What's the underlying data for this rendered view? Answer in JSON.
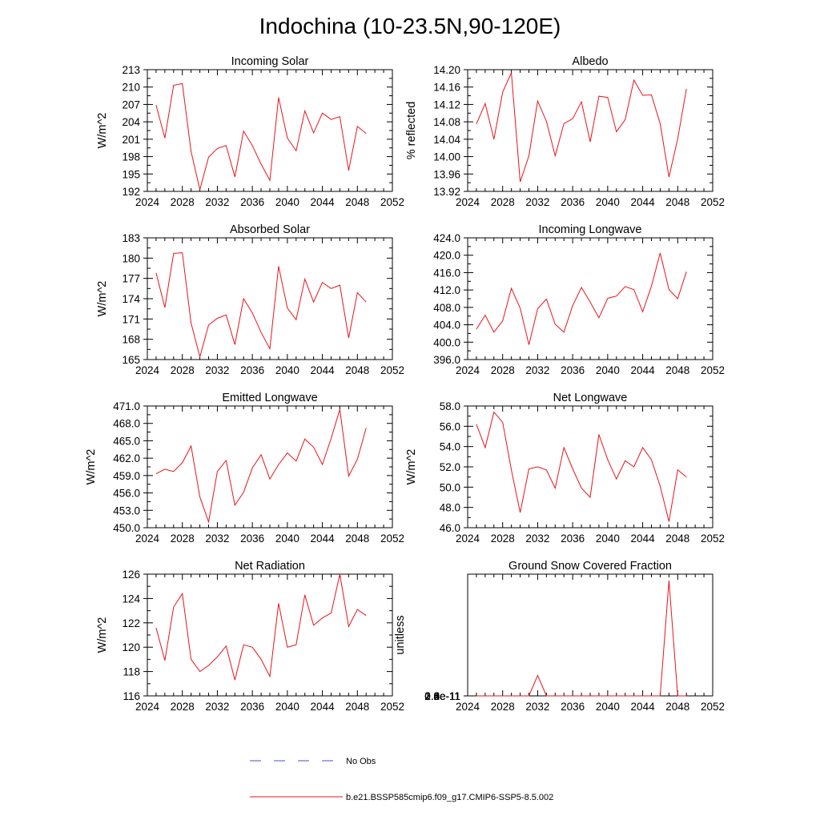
{
  "title": "Indochina (10-23.5N,90-120E)",
  "legend": [
    {
      "label": "No Obs",
      "color": "#4a4ad8",
      "dash": true
    },
    {
      "label": "b.e21.BSSP585cmip6.f09_g17.CMIP6-SSP5-8.5.002",
      "color": "#e8141b",
      "dash": false
    }
  ],
  "chart_data": [
    {
      "type": "line",
      "title": "Incoming Solar",
      "ylabel": "W/m^2",
      "xlim": [
        2024,
        2052
      ],
      "xticks": [
        "2024",
        "2028",
        "2032",
        "2036",
        "2040",
        "2044",
        "2048",
        "2052"
      ],
      "ylim": [
        192,
        213
      ],
      "yticks": [
        "192",
        "195",
        "198",
        "201",
        "204",
        "207",
        "210",
        "213"
      ],
      "x": [
        2025,
        2026,
        2027,
        2028,
        2029,
        2030,
        2031,
        2032,
        2033,
        2034,
        2035,
        2036,
        2037,
        2038,
        2039,
        2040,
        2041,
        2042,
        2043,
        2044,
        2045,
        2046,
        2047,
        2048,
        2049
      ],
      "values": [
        206.9,
        201.2,
        210.3,
        210.6,
        198.9,
        192.3,
        197.9,
        199.4,
        199.9,
        194.5,
        202.4,
        199.9,
        196.7,
        193.9,
        208.2,
        201.2,
        199.0,
        205.9,
        202.1,
        205.5,
        204.4,
        204.9,
        195.6,
        203.2,
        202.0
      ]
    },
    {
      "type": "line",
      "title": "Albedo",
      "ylabel": "% reflected",
      "xlim": [
        2024,
        2052
      ],
      "xticks": [
        "2024",
        "2028",
        "2032",
        "2036",
        "2040",
        "2044",
        "2048",
        "2052"
      ],
      "ylim": [
        13.92,
        14.2
      ],
      "yticks": [
        "13.92",
        "13.96",
        "14.00",
        "14.04",
        "14.08",
        "14.12",
        "14.16",
        "14.20"
      ],
      "x": [
        2025,
        2026,
        2027,
        2028,
        2029,
        2030,
        2031,
        2032,
        2033,
        2034,
        2035,
        2036,
        2037,
        2038,
        2039,
        2040,
        2041,
        2042,
        2043,
        2044,
        2045,
        2046,
        2047,
        2048,
        2049
      ],
      "values": [
        14.075,
        14.122,
        14.04,
        14.148,
        14.193,
        13.942,
        14.002,
        14.128,
        14.081,
        14.002,
        14.076,
        14.087,
        14.126,
        14.034,
        14.139,
        14.136,
        14.057,
        14.085,
        14.176,
        14.141,
        14.142,
        14.076,
        13.953,
        14.041,
        14.156
      ]
    },
    {
      "type": "line",
      "title": "Absorbed Solar",
      "ylabel": "W/m^2",
      "xlim": [
        2024,
        2052
      ],
      "xticks": [
        "2024",
        "2028",
        "2032",
        "2036",
        "2040",
        "2044",
        "2048",
        "2052"
      ],
      "ylim": [
        165,
        183
      ],
      "yticks": [
        "165",
        "168",
        "171",
        "174",
        "177",
        "180",
        "183"
      ],
      "x": [
        2025,
        2026,
        2027,
        2028,
        2029,
        2030,
        2031,
        2032,
        2033,
        2034,
        2035,
        2036,
        2037,
        2038,
        2039,
        2040,
        2041,
        2042,
        2043,
        2044,
        2045,
        2046,
        2047,
        2048,
        2049
      ],
      "values": [
        177.8,
        172.7,
        180.7,
        180.8,
        170.4,
        165.4,
        170.1,
        171.1,
        171.6,
        167.2,
        174.0,
        171.9,
        169.0,
        166.6,
        178.8,
        172.6,
        170.9,
        176.9,
        173.5,
        176.4,
        175.5,
        176.0,
        168.2,
        174.9,
        173.5
      ]
    },
    {
      "type": "line",
      "title": "Incoming Longwave",
      "ylabel": "",
      "xlim": [
        2024,
        2052
      ],
      "xticks": [
        "2024",
        "2028",
        "2032",
        "2036",
        "2040",
        "2044",
        "2048",
        "2052"
      ],
      "ylim": [
        396.0,
        424.0
      ],
      "yticks": [
        "396.0",
        "400.0",
        "404.0",
        "408.0",
        "412.0",
        "416.0",
        "420.0",
        "424.0"
      ],
      "x": [
        2025,
        2026,
        2027,
        2028,
        2029,
        2030,
        2031,
        2032,
        2033,
        2034,
        2035,
        2036,
        2037,
        2038,
        2039,
        2040,
        2041,
        2042,
        2043,
        2044,
        2045,
        2046,
        2047,
        2048,
        2049
      ],
      "values": [
        403.0,
        406.2,
        402.3,
        404.9,
        412.4,
        407.8,
        399.4,
        407.7,
        409.9,
        404.1,
        402.3,
        408.4,
        412.6,
        409.2,
        405.6,
        410.1,
        410.6,
        412.8,
        412.1,
        407.0,
        412.9,
        420.5,
        412.1,
        410.0,
        416.2
      ]
    },
    {
      "type": "line",
      "title": "Emitted Longwave",
      "ylabel": "W/m^2",
      "xlim": [
        2024,
        2052
      ],
      "xticks": [
        "2024",
        "2028",
        "2032",
        "2036",
        "2040",
        "2044",
        "2048",
        "2052"
      ],
      "ylim": [
        450.0,
        471.0
      ],
      "yticks": [
        "450.0",
        "453.0",
        "456.0",
        "459.0",
        "462.0",
        "465.0",
        "468.0",
        "471.0"
      ],
      "x": [
        2025,
        2026,
        2027,
        2028,
        2029,
        2030,
        2031,
        2032,
        2033,
        2034,
        2035,
        2036,
        2037,
        2038,
        2039,
        2040,
        2041,
        2042,
        2043,
        2044,
        2045,
        2046,
        2047,
        2048,
        2049
      ],
      "values": [
        459.3,
        460.1,
        459.7,
        461.2,
        464.1,
        455.3,
        451.0,
        459.7,
        461.6,
        453.9,
        456.1,
        460.3,
        462.6,
        458.4,
        460.9,
        462.9,
        461.5,
        465.3,
        463.9,
        460.9,
        465.4,
        470.4,
        458.9,
        461.8,
        467.2
      ]
    },
    {
      "type": "line",
      "title": "Net Longwave",
      "ylabel": "W/m^2",
      "xlim": [
        2024,
        2052
      ],
      "xticks": [
        "2024",
        "2028",
        "2032",
        "2036",
        "2040",
        "2044",
        "2048",
        "2052"
      ],
      "ylim": [
        46.0,
        58.0
      ],
      "yticks": [
        "46.0",
        "48.0",
        "50.0",
        "52.0",
        "54.0",
        "56.0",
        "58.0"
      ],
      "x": [
        2025,
        2026,
        2027,
        2028,
        2029,
        2030,
        2031,
        2032,
        2033,
        2034,
        2035,
        2036,
        2037,
        2038,
        2039,
        2040,
        2041,
        2042,
        2043,
        2044,
        2045,
        2046,
        2047,
        2048,
        2049
      ],
      "values": [
        56.2,
        53.9,
        57.4,
        56.4,
        51.7,
        47.5,
        51.8,
        52.0,
        51.7,
        49.9,
        53.9,
        51.8,
        49.9,
        49.0,
        55.2,
        52.7,
        50.8,
        52.6,
        52.0,
        53.9,
        52.7,
        50.1,
        46.6,
        51.7,
        51.0
      ]
    },
    {
      "type": "line",
      "title": "Net Radiation",
      "ylabel": "W/m^2",
      "xlim": [
        2024,
        2052
      ],
      "xticks": [
        "2024",
        "2028",
        "2032",
        "2036",
        "2040",
        "2044",
        "2048",
        "2052"
      ],
      "ylim": [
        116,
        126
      ],
      "yticks": [
        "116",
        "118",
        "120",
        "122",
        "124",
        "126"
      ],
      "x": [
        2025,
        2026,
        2027,
        2028,
        2029,
        2030,
        2031,
        2032,
        2033,
        2034,
        2035,
        2036,
        2037,
        2038,
        2039,
        2040,
        2041,
        2042,
        2043,
        2044,
        2045,
        2046,
        2047,
        2048,
        2049
      ],
      "values": [
        121.6,
        118.9,
        123.3,
        124.4,
        119.0,
        118.0,
        118.5,
        119.2,
        120.1,
        117.3,
        120.2,
        120.0,
        119.0,
        117.6,
        123.6,
        120.0,
        120.2,
        124.3,
        121.8,
        122.4,
        122.8,
        126.0,
        121.7,
        123.1,
        122.6
      ]
    },
    {
      "type": "line",
      "title": "Ground Snow Covered Fraction",
      "ylabel": "unitless",
      "xlim": [
        2024,
        2052
      ],
      "xticks": [
        "2024",
        "2028",
        "2032",
        "2036",
        "2040",
        "2044",
        "2048",
        "2052"
      ],
      "ylim": [
        0.0,
        2.8
      ],
      "yscale_label": "e-11",
      "yticks": [
        "0.0e-11",
        "0.4e-11",
        "0.8e-11",
        "1.2e-11",
        "1.6e-11",
        "2.0e-11",
        "2.4e-11",
        "2.8e-11"
      ],
      "x": [
        2025,
        2026,
        2027,
        2028,
        2029,
        2030,
        2031,
        2032,
        2033,
        2034,
        2035,
        2036,
        2037,
        2038,
        2039,
        2040,
        2041,
        2042,
        2043,
        2044,
        2045,
        2046,
        2047,
        2048,
        2049
      ],
      "values": [
        0,
        0,
        0,
        0,
        0,
        0,
        0,
        0.47,
        0,
        0,
        0,
        0,
        0,
        0,
        0,
        0,
        0,
        0,
        0,
        0,
        0,
        0,
        2.65,
        0,
        0
      ]
    }
  ]
}
